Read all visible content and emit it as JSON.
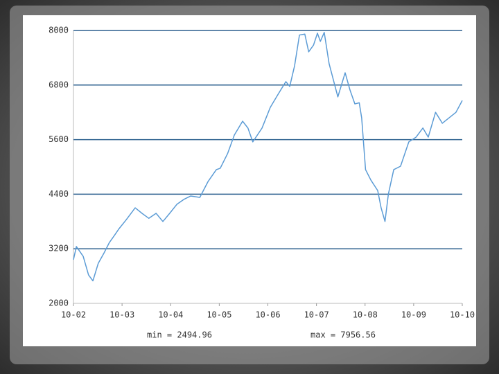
{
  "chart_data": {
    "type": "line",
    "xlim": [
      0,
      8
    ],
    "xticks": [
      {
        "value": 0,
        "label": "10-02"
      },
      {
        "value": 1,
        "label": "10-03"
      },
      {
        "value": 2,
        "label": "10-04"
      },
      {
        "value": 3,
        "label": "10-05"
      },
      {
        "value": 4,
        "label": "10-06"
      },
      {
        "value": 5,
        "label": "10-07"
      },
      {
        "value": 6,
        "label": "10-08"
      },
      {
        "value": 7,
        "label": "10-09"
      },
      {
        "value": 8,
        "label": "10-10"
      }
    ],
    "ylim": [
      2000,
      8000
    ],
    "yticks": [
      2000,
      3200,
      4400,
      5600,
      6800,
      8000
    ],
    "grid": true,
    "x": [
      0,
      0.06,
      0.2,
      0.31,
      0.4,
      0.51,
      0.63,
      0.74,
      0.84,
      0.94,
      1.08,
      1.27,
      1.41,
      1.55,
      1.7,
      1.84,
      1.98,
      2.13,
      2.27,
      2.41,
      2.6,
      2.77,
      2.94,
      3.02,
      3.17,
      3.31,
      3.48,
      3.59,
      3.69,
      3.88,
      4.05,
      4.22,
      4.37,
      4.45,
      4.55,
      4.65,
      4.76,
      4.84,
      4.94,
      5.02,
      5.08,
      5.16,
      5.26,
      5.44,
      5.59,
      5.69,
      5.79,
      5.88,
      5.93,
      6.01,
      6.12,
      6.26,
      6.33,
      6.41,
      6.48,
      6.59,
      6.73,
      6.9,
      7.05,
      7.19,
      7.3,
      7.45,
      7.59,
      7.73,
      7.87,
      8
    ],
    "values": [
      2960,
      3250,
      3035,
      2625,
      2494.96,
      2880,
      3110,
      3340,
      3490,
      3645,
      3830,
      4100,
      3980,
      3870,
      3980,
      3800,
      3980,
      4180,
      4285,
      4360,
      4330,
      4680,
      4940,
      4970,
      5290,
      5700,
      6005,
      5855,
      5550,
      5855,
      6310,
      6615,
      6875,
      6770,
      7225,
      7900,
      7920,
      7530,
      7680,
      7940,
      7760,
      7956.56,
      7270,
      6540,
      7070,
      6690,
      6385,
      6410,
      6080,
      4940,
      4710,
      4480,
      4100,
      3800,
      4405,
      4940,
      5015,
      5550,
      5655,
      5855,
      5655,
      6200,
      5960,
      6080,
      6200,
      6460
    ],
    "color": "#5b9bd5",
    "grid_color": "#2b5f8e",
    "annotations": [
      "min = 2494.96",
      "max = 7956.56"
    ]
  }
}
